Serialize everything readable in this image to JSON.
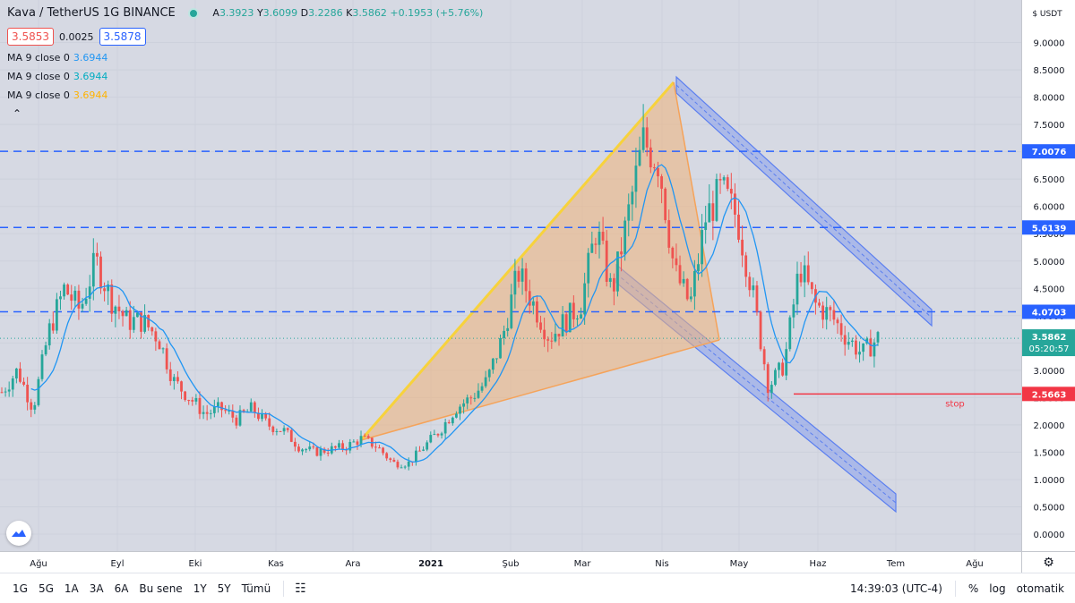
{
  "header": {
    "title": "Kava / TetherUS  1G  BINANCE",
    "ohlc": {
      "o_label": "A",
      "o": "3.3923",
      "h_label": "Y",
      "h": "3.6099",
      "l_label": "D",
      "l": "3.2286",
      "c_label": "K",
      "c": "3.5862",
      "change": "+0.1953 (+5.76%)"
    },
    "sell_price": "3.5853",
    "spread": "0.0025",
    "buy_price": "3.5878",
    "indicators": [
      {
        "label": "MA 9 close 0",
        "value": "3.6944",
        "color": "#2196f3"
      },
      {
        "label": "MA 9 close 0",
        "value": "3.6944",
        "color": "#00bcd4"
      },
      {
        "label": "MA 9 close 0",
        "value": "3.6944",
        "color": "#ffb300"
      }
    ],
    "collapse_icon": "chevron-up-icon"
  },
  "price_axis": {
    "currency": "$ USDT",
    "labels": [
      "9.0000",
      "8.5000",
      "8.0000",
      "7.5000",
      "7.0000",
      "6.5000",
      "6.0000",
      "5.5000",
      "5.0000",
      "4.5000",
      "4.0000",
      "3.5000",
      "3.0000",
      "2.5000",
      "2.0000",
      "1.5000",
      "1.0000",
      "0.5000",
      "0.0000"
    ],
    "levels": [
      {
        "value": "7.0076",
        "price": 7.0076,
        "style": "blue"
      },
      {
        "value": "5.6139",
        "price": 5.6139,
        "style": "blue"
      },
      {
        "value": "4.0703",
        "price": 4.0703,
        "style": "blue"
      },
      {
        "value": "2.5663",
        "price": 2.5663,
        "style": "red"
      }
    ],
    "last_price": "3.5862",
    "countdown": "05:20:57",
    "stop_label": "stop"
  },
  "time_axis": {
    "labels": [
      "Ağu",
      "Eyl",
      "Eki",
      "Kas",
      "Ara",
      "2021",
      "Şub",
      "Mar",
      "Nis",
      "May",
      "Haz",
      "Tem",
      "Ağu"
    ]
  },
  "bottom_bar": {
    "ranges": [
      "1G",
      "5G",
      "1A",
      "3A",
      "6A",
      "Bu sene",
      "1Y",
      "5Y",
      "Tümü"
    ],
    "time": "14:39:03 (UTC-4)",
    "percent": "%",
    "log": "log",
    "auto": "otomatik"
  },
  "colors": {
    "up": "#26a69a",
    "down": "#ef5350",
    "level_line": "#2962ff",
    "stop_line": "#f23645",
    "ma": "#2196f3",
    "triangle_edge": "#f7d23c",
    "triangle_fill": "#f0b27a",
    "channel": "#5b7ff0"
  },
  "chart_data": {
    "type": "candlestick",
    "symbol": "Kava / TetherUS",
    "timeframe": "1G",
    "exchange": "BINANCE",
    "ylim": [
      0,
      9.5
    ],
    "x_labels": [
      "Ağu",
      "Eyl",
      "Eki",
      "Kas",
      "Ara",
      "2021",
      "Şub",
      "Mar",
      "Nis",
      "May",
      "Haz",
      "Tem",
      "Ağu"
    ],
    "close_path": [
      [
        2020.58,
        2.6
      ],
      [
        2020.6,
        3.0
      ],
      [
        2020.62,
        2.3
      ],
      [
        2020.64,
        3.7
      ],
      [
        2020.66,
        4.5
      ],
      [
        2020.68,
        4.1
      ],
      [
        2020.7,
        5.0
      ],
      [
        2020.72,
        4.3
      ],
      [
        2020.74,
        3.9
      ],
      [
        2020.76,
        3.9
      ],
      [
        2020.78,
        3.6
      ],
      [
        2020.8,
        2.8
      ],
      [
        2020.82,
        2.5
      ],
      [
        2020.84,
        2.2
      ],
      [
        2020.86,
        2.3
      ],
      [
        2020.88,
        2.1
      ],
      [
        2020.9,
        2.3
      ],
      [
        2020.92,
        2.0
      ],
      [
        2020.94,
        1.9
      ],
      [
        2020.96,
        1.6
      ],
      [
        2020.98,
        1.5
      ],
      [
        2021.0,
        1.55
      ],
      [
        2021.02,
        1.6
      ],
      [
        2021.04,
        1.75
      ],
      [
        2021.06,
        1.6
      ],
      [
        2021.08,
        1.3
      ],
      [
        2021.1,
        1.3
      ],
      [
        2021.12,
        1.6
      ],
      [
        2021.14,
        1.9
      ],
      [
        2021.16,
        2.3
      ],
      [
        2021.18,
        2.5
      ],
      [
        2021.2,
        2.8
      ],
      [
        2021.22,
        3.6
      ],
      [
        2021.24,
        4.8
      ],
      [
        2021.26,
        4.2
      ],
      [
        2021.28,
        3.6
      ],
      [
        2021.3,
        3.9
      ],
      [
        2021.32,
        4.2
      ],
      [
        2021.34,
        5.6
      ],
      [
        2021.36,
        4.4
      ],
      [
        2021.38,
        5.8
      ],
      [
        2021.4,
        7.2
      ],
      [
        2021.42,
        6.8
      ],
      [
        2021.44,
        4.8
      ],
      [
        2021.46,
        4.2
      ],
      [
        2021.48,
        5.8
      ],
      [
        2021.5,
        6.3
      ],
      [
        2021.52,
        5.8
      ],
      [
        2021.54,
        4.4
      ],
      [
        2021.56,
        2.7
      ],
      [
        2021.58,
        3.1
      ],
      [
        2021.6,
        4.9
      ],
      [
        2021.62,
        4.2
      ],
      [
        2021.64,
        4.0
      ],
      [
        2021.66,
        3.6
      ],
      [
        2021.68,
        3.3
      ],
      [
        2021.7,
        3.59
      ]
    ],
    "stop_level": 2.5663,
    "annotations": {
      "triangle": [
        [
          "Ara",
          1.75
        ],
        [
          "Nis",
          8.3
        ],
        [
          "Nis+",
          3.5
        ]
      ],
      "falling_channel_upper": [
        [
          "Nis",
          8.3
        ],
        [
          "Tem+",
          4.0
        ]
      ],
      "falling_channel_lower": [
        [
          "Mar",
          4.8
        ],
        [
          "Tem+",
          0.7
        ]
      ]
    }
  }
}
